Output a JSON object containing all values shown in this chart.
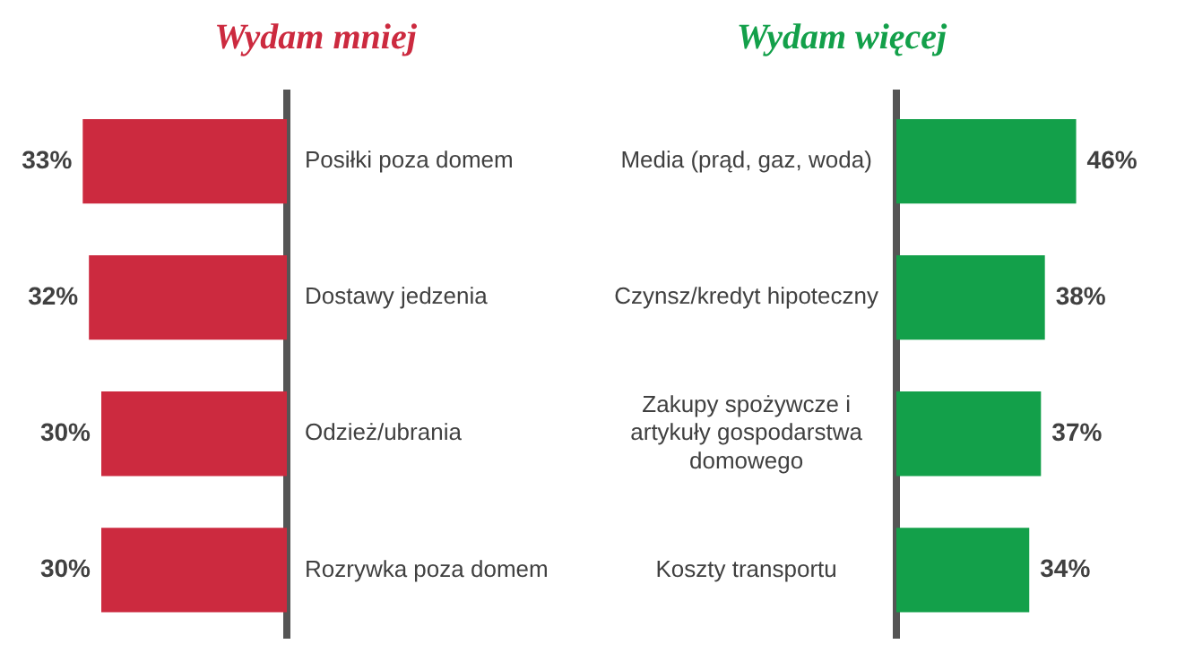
{
  "chart_data": [
    {
      "type": "bar",
      "orientation": "horizontal",
      "title": "Wydam mniej",
      "categories": [
        "Posiłki poza domem",
        "Dostawy jedzenia",
        "Odzież/ubrania",
        "Rozrywka poza domem"
      ],
      "series": [
        {
          "color": "#cc2a3f",
          "values": [
            33,
            32,
            30,
            30
          ],
          "value_labels": [
            "33%",
            "32%",
            "30%",
            "30%"
          ]
        }
      ],
      "tick_labels": "y",
      "grid": false,
      "legend": false
    },
    {
      "type": "bar",
      "orientation": "horizontal",
      "title": "Wydam więcej",
      "categories": [
        "Media (prąd, gaz, woda)",
        "Czynsz/kredyt hipoteczny",
        "Zakupy spożywcze i artykuły gospodarstwa domowego",
        "Koszty transportu"
      ],
      "series": [
        {
          "color": "#13a04a",
          "values": [
            46,
            38,
            37,
            34
          ],
          "value_labels": [
            "46%",
            "38%",
            "37%",
            "34%"
          ]
        }
      ],
      "tick_labels": "y",
      "grid": false,
      "legend": false
    }
  ]
}
